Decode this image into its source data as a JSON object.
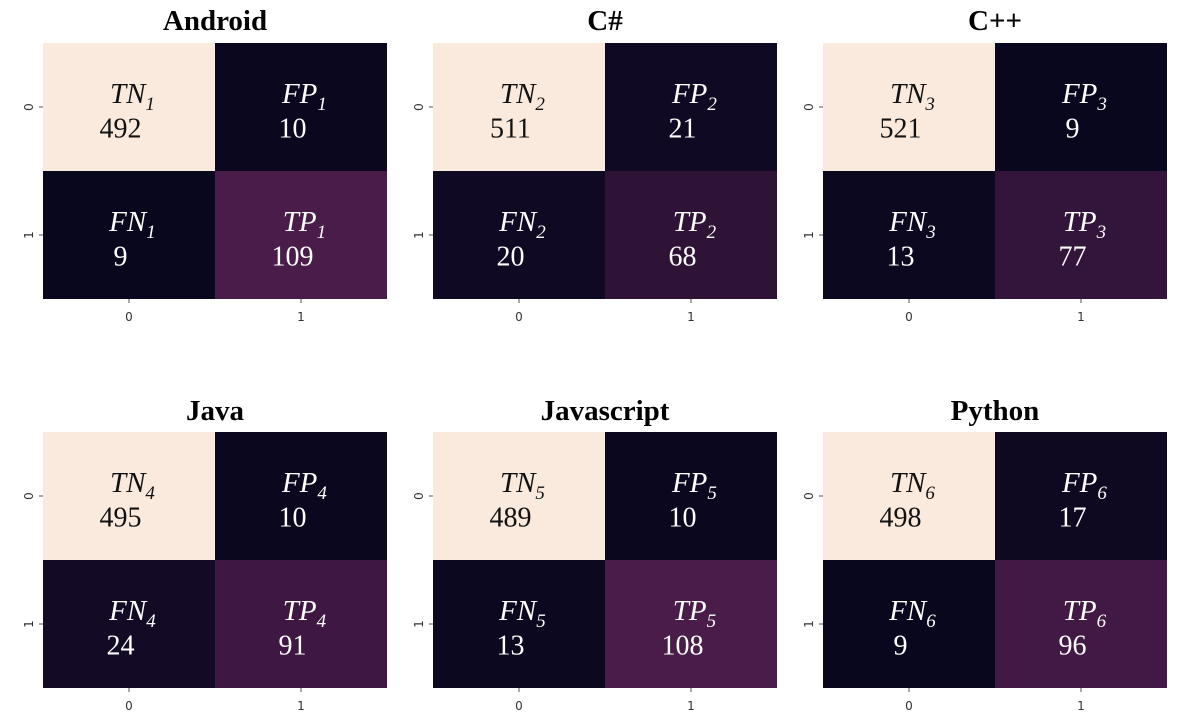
{
  "chart_data": [
    {
      "type": "heatmap",
      "title": "Android",
      "x_tick_labels": [
        "0",
        "1"
      ],
      "y_tick_labels": [
        "0",
        "1"
      ],
      "cells": [
        [
          {
            "label": "TN",
            "sub": "1",
            "value": 492
          },
          {
            "label": "FP",
            "sub": "1",
            "value": 10
          }
        ],
        [
          {
            "label": "FN",
            "sub": "1",
            "value": 9
          },
          {
            "label": "TP",
            "sub": "1",
            "value": 109
          }
        ]
      ]
    },
    {
      "type": "heatmap",
      "title": "C#",
      "x_tick_labels": [
        "0",
        "1"
      ],
      "y_tick_labels": [
        "0",
        "1"
      ],
      "cells": [
        [
          {
            "label": "TN",
            "sub": "2",
            "value": 511
          },
          {
            "label": "FP",
            "sub": "2",
            "value": 21
          }
        ],
        [
          {
            "label": "FN",
            "sub": "2",
            "value": 20
          },
          {
            "label": "TP",
            "sub": "2",
            "value": 68
          }
        ]
      ]
    },
    {
      "type": "heatmap",
      "title": "C++",
      "x_tick_labels": [
        "0",
        "1"
      ],
      "y_tick_labels": [
        "0",
        "1"
      ],
      "cells": [
        [
          {
            "label": "TN",
            "sub": "3",
            "value": 521
          },
          {
            "label": "FP",
            "sub": "3",
            "value": 9
          }
        ],
        [
          {
            "label": "FN",
            "sub": "3",
            "value": 13
          },
          {
            "label": "TP",
            "sub": "3",
            "value": 77
          }
        ]
      ]
    },
    {
      "type": "heatmap",
      "title": "Java",
      "x_tick_labels": [
        "0",
        "1"
      ],
      "y_tick_labels": [
        "0",
        "1"
      ],
      "cells": [
        [
          {
            "label": "TN",
            "sub": "4",
            "value": 495
          },
          {
            "label": "FP",
            "sub": "4",
            "value": 10
          }
        ],
        [
          {
            "label": "FN",
            "sub": "4",
            "value": 24
          },
          {
            "label": "TP",
            "sub": "4",
            "value": 91
          }
        ]
      ]
    },
    {
      "type": "heatmap",
      "title": "Javascript",
      "x_tick_labels": [
        "0",
        "1"
      ],
      "y_tick_labels": [
        "0",
        "1"
      ],
      "cells": [
        [
          {
            "label": "TN",
            "sub": "5",
            "value": 489
          },
          {
            "label": "FP",
            "sub": "5",
            "value": 10
          }
        ],
        [
          {
            "label": "FN",
            "sub": "5",
            "value": 13
          },
          {
            "label": "TP",
            "sub": "5",
            "value": 108
          }
        ]
      ]
    },
    {
      "type": "heatmap",
      "title": "Python",
      "x_tick_labels": [
        "0",
        "1"
      ],
      "y_tick_labels": [
        "0",
        "1"
      ],
      "cells": [
        [
          {
            "label": "TN",
            "sub": "6",
            "value": 498
          },
          {
            "label": "FP",
            "sub": "6",
            "value": 17
          }
        ],
        [
          {
            "label": "FN",
            "sub": "6",
            "value": 9
          },
          {
            "label": "TP",
            "sub": "6",
            "value": 96
          }
        ]
      ]
    }
  ],
  "colors": {
    "high": "#faeadd",
    "low": "#03051a",
    "mid": "#4a1c4a",
    "text_on_light": "#111111",
    "text_on_dark": "#ffffff"
  }
}
